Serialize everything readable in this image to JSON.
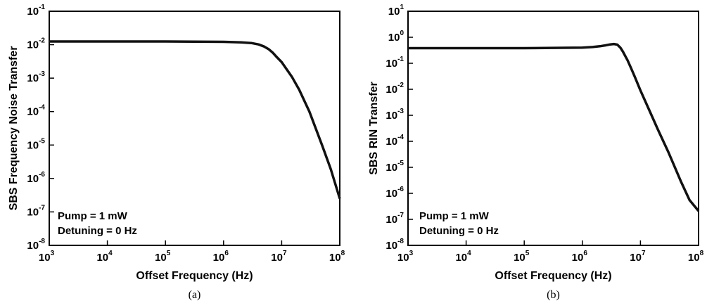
{
  "chart_data": [
    {
      "type": "line",
      "caption": "(a)",
      "xlabel": "Offset Frequency (Hz)",
      "ylabel": "SBS Frequency Noise Transfer",
      "xscale": "log",
      "yscale": "log",
      "xlim": [
        1000,
        100000000
      ],
      "ylim": [
        1e-08,
        0.1
      ],
      "x_ticks": [
        {
          "base": "10",
          "exp": "3"
        },
        {
          "base": "10",
          "exp": "4"
        },
        {
          "base": "10",
          "exp": "5"
        },
        {
          "base": "10",
          "exp": "6"
        },
        {
          "base": "10",
          "exp": "7"
        },
        {
          "base": "10",
          "exp": "8"
        }
      ],
      "y_ticks": [
        {
          "base": "10",
          "exp": "-8"
        },
        {
          "base": "10",
          "exp": "-7"
        },
        {
          "base": "10",
          "exp": "-6"
        },
        {
          "base": "10",
          "exp": "-5"
        },
        {
          "base": "10",
          "exp": "-4"
        },
        {
          "base": "10",
          "exp": "-3"
        },
        {
          "base": "10",
          "exp": "-2"
        },
        {
          "base": "10",
          "exp": "-1"
        }
      ],
      "annotations": [
        "Pump = 1 mW",
        "Detuning = 0 Hz"
      ],
      "grid": false,
      "line_color": "#111111",
      "series": [
        {
          "x": [
            1000,
            10000,
            100000,
            1000000,
            2000000,
            3000000,
            4000000,
            5000000,
            6000000,
            7000000,
            8000000,
            10000000,
            15000000,
            20000000,
            30000000,
            50000000,
            70000000,
            100000000
          ],
          "y": [
            0.0125,
            0.0125,
            0.0125,
            0.0122,
            0.0118,
            0.0112,
            0.0102,
            0.0088,
            0.0073,
            0.0058,
            0.0045,
            0.003,
            0.0011,
            0.00045,
            0.0001,
            9.5e-06,
            1.9e-06,
            2.5e-07
          ]
        }
      ]
    },
    {
      "type": "line",
      "caption": "(b)",
      "xlabel": "Offset Frequency (Hz)",
      "ylabel": "SBS RIN Transfer",
      "xscale": "log",
      "yscale": "log",
      "xlim": [
        1000,
        100000000
      ],
      "ylim": [
        1e-08,
        10
      ],
      "x_ticks": [
        {
          "base": "10",
          "exp": "3"
        },
        {
          "base": "10",
          "exp": "4"
        },
        {
          "base": "10",
          "exp": "5"
        },
        {
          "base": "10",
          "exp": "6"
        },
        {
          "base": "10",
          "exp": "7"
        },
        {
          "base": "10",
          "exp": "8"
        }
      ],
      "y_ticks": [
        {
          "base": "10",
          "exp": "-8"
        },
        {
          "base": "10",
          "exp": "-7"
        },
        {
          "base": "10",
          "exp": "-6"
        },
        {
          "base": "10",
          "exp": "-5"
        },
        {
          "base": "10",
          "exp": "-4"
        },
        {
          "base": "10",
          "exp": "-3"
        },
        {
          "base": "10",
          "exp": "-2"
        },
        {
          "base": "10",
          "exp": "-1"
        },
        {
          "base": "10",
          "exp": "0"
        },
        {
          "base": "10",
          "exp": "1"
        }
      ],
      "annotations": [
        "Pump = 1 mW",
        "Detuning = 0 Hz"
      ],
      "grid": false,
      "line_color": "#111111",
      "series": [
        {
          "x": [
            1000,
            10000,
            100000,
            1000000,
            1500000,
            2000000,
            2500000,
            3000000,
            3500000,
            4000000,
            4500000,
            5000000,
            6000000,
            7000000,
            8000000,
            10000000,
            15000000,
            20000000,
            30000000,
            50000000,
            70000000,
            100000000
          ],
          "y": [
            0.38,
            0.38,
            0.38,
            0.4,
            0.42,
            0.45,
            0.49,
            0.53,
            0.55,
            0.52,
            0.4,
            0.28,
            0.13,
            0.06,
            0.03,
            0.009,
            0.0012,
            0.00028,
            4e-05,
            2.8e-06,
            5.5e-07,
            2.1e-07
          ]
        }
      ]
    }
  ]
}
